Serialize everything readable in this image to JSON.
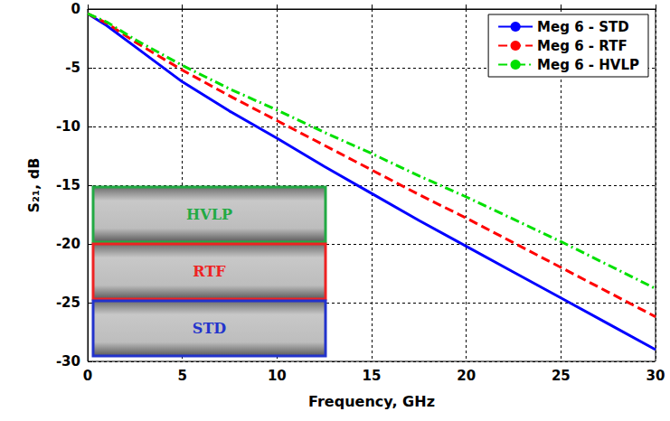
{
  "chart_data": {
    "type": "line",
    "x_label": "Frequency, GHz",
    "y_label": "S₂₁, dB",
    "x": [
      0,
      1,
      2.5,
      5,
      7.5,
      10,
      12.5,
      15,
      17.5,
      20,
      22.5,
      25,
      27.5,
      30
    ],
    "series": [
      {
        "name": "Meg 6 - STD",
        "color": "#0000ff",
        "line_style": "solid",
        "values": [
          -0.4,
          -1.4,
          -3.2,
          -6.2,
          -8.7,
          -11.0,
          -13.4,
          -15.7,
          -18.0,
          -20.2,
          -22.4,
          -24.6,
          -26.8,
          -29.0
        ]
      },
      {
        "name": "Meg 6 - RTF",
        "color": "#ff0000",
        "line_style": "dashed",
        "values": [
          -0.4,
          -1.2,
          -2.8,
          -5.2,
          -7.4,
          -9.5,
          -11.6,
          -13.7,
          -15.8,
          -17.8,
          -19.9,
          -22.0,
          -24.1,
          -26.2
        ]
      },
      {
        "name": "Meg 6 - HVLP",
        "color": "#00e000",
        "line_style": "dashdot",
        "values": [
          -0.4,
          -1.1,
          -2.6,
          -4.8,
          -6.8,
          -8.6,
          -10.5,
          -12.3,
          -14.2,
          -16.0,
          -17.9,
          -19.8,
          -21.8,
          -23.8
        ]
      }
    ],
    "xlim": [
      0,
      30
    ],
    "xticks": [
      0,
      5,
      10,
      15,
      20,
      25,
      30
    ],
    "ylim": [
      -30,
      0
    ],
    "yticks": [
      -30,
      -25,
      -20,
      -15,
      -10,
      -5,
      0
    ],
    "grid": true,
    "legend": "upper right",
    "annotations": [
      {
        "text": "HVLP",
        "color": "#22aa44"
      },
      {
        "text": "RTF",
        "color": "#ee2222"
      },
      {
        "text": "STD",
        "color": "#2233cc"
      }
    ]
  }
}
